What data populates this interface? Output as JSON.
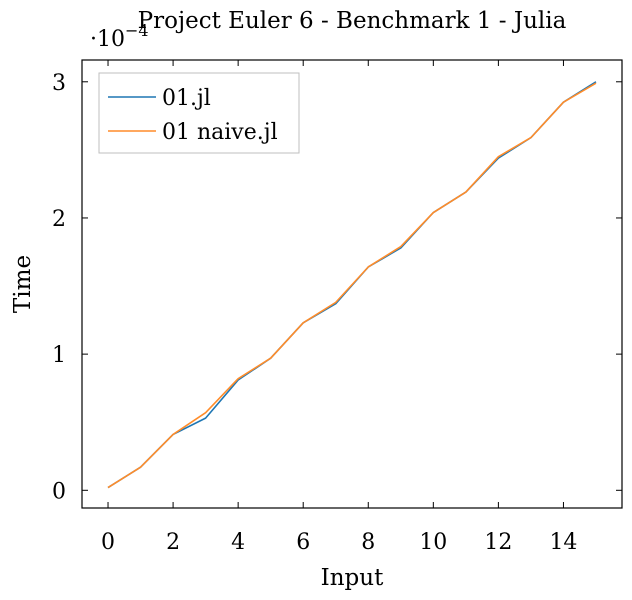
{
  "chart_data": {
    "type": "line",
    "title": "Project Euler 6 - Benchmark 1 - Julia",
    "xlabel": "Input",
    "ylabel": "Time",
    "y_multiplier_base": "·10",
    "y_multiplier_exponent": "−4",
    "xlim": [
      -0.8,
      15.8
    ],
    "ylim": [
      -0.13,
      3.16
    ],
    "x_ticks": [
      0,
      2,
      4,
      6,
      8,
      10,
      12,
      14
    ],
    "y_ticks": [
      0,
      1,
      2,
      3
    ],
    "grid": false,
    "legend_position": "top-left",
    "x": [
      0,
      1,
      2,
      3,
      4,
      5,
      6,
      7,
      8,
      9,
      10,
      11,
      12,
      13,
      14,
      15
    ],
    "series": [
      {
        "name": "01.jl",
        "color": "#1f77b4",
        "values": [
          0.02,
          0.17,
          0.41,
          0.53,
          0.81,
          0.97,
          1.23,
          1.37,
          1.64,
          1.78,
          2.04,
          2.19,
          2.44,
          2.59,
          2.85,
          3.0
        ]
      },
      {
        "name": "01 naive.jl",
        "color": "#ff8c2a",
        "values": [
          0.02,
          0.17,
          0.41,
          0.57,
          0.82,
          0.97,
          1.23,
          1.38,
          1.64,
          1.79,
          2.04,
          2.19,
          2.45,
          2.59,
          2.85,
          2.99
        ]
      }
    ]
  }
}
